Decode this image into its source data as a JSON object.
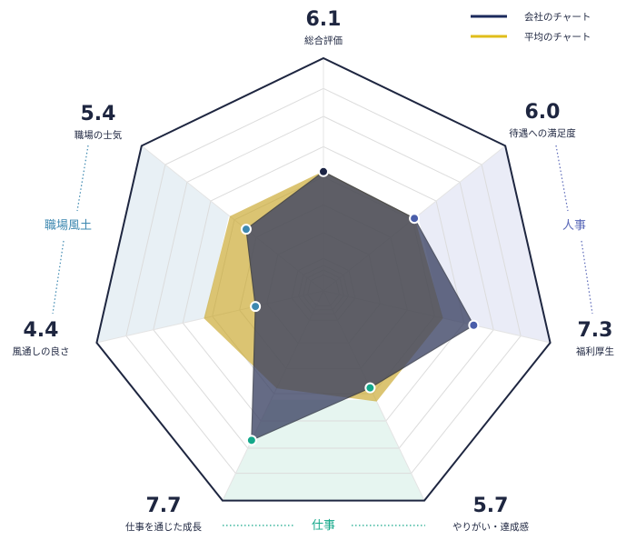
{
  "chart_data": {
    "type": "radar",
    "title": "",
    "axes": [
      "総合評価",
      "待遇への満足度",
      "福利厚生",
      "やりがい・達成感",
      "仕事を通じた成長",
      "風通しの良さ",
      "職場の士気"
    ],
    "range": [
      2,
      10
    ],
    "series": [
      {
        "name": "会社のチャート",
        "color": "#1b2a5c",
        "values": [
          6.1,
          6.0,
          7.3,
          5.7,
          7.7,
          4.4,
          5.4
        ]
      },
      {
        "name": "平均のチャート",
        "color": "#e0bd1a",
        "values": [
          6.1,
          6.0,
          6.2,
          6.2,
          5.7,
          6.2,
          6.1
        ]
      }
    ],
    "value_labels": [
      "6.1",
      "6.0",
      "7.3",
      "5.7",
      "7.7",
      "4.4",
      "5.4"
    ],
    "groups": [
      {
        "label": "職場風土",
        "axes": [
          5,
          6
        ],
        "color": "#3d88b0",
        "fill": "#e8f0f5"
      },
      {
        "label": "人事",
        "axes": [
          1,
          2
        ],
        "color": "#5a68b8",
        "fill": "#eaecf7"
      },
      {
        "label": "仕事",
        "axes": [
          3,
          4
        ],
        "color": "#14a88a",
        "fill": "#e6f5f0"
      }
    ],
    "point_colors": [
      "#1c2444",
      "#4a5eaa",
      "#4a5eaa",
      "#14a88a",
      "#14a88a",
      "#3d88b0",
      "#3d88b0"
    ],
    "legend_position": "top-right"
  }
}
